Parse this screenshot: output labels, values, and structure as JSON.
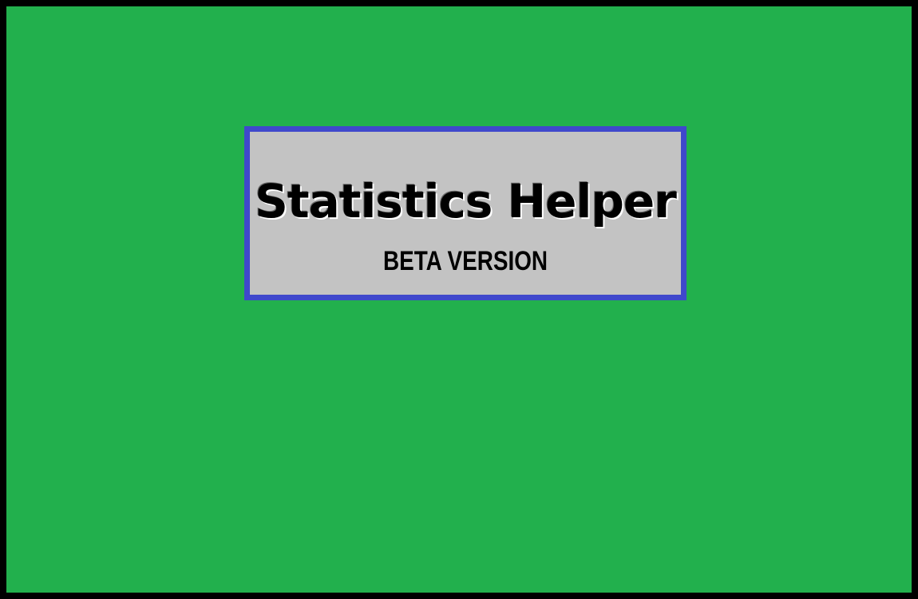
{
  "splash": {
    "title": "Statistics Helper",
    "subtitle": "BETA VERSION"
  },
  "colors": {
    "background": "#22b04d",
    "window_border": "#000000",
    "card_background": "#c3c3c3",
    "card_border": "#3f48cc",
    "text": "#000000"
  }
}
